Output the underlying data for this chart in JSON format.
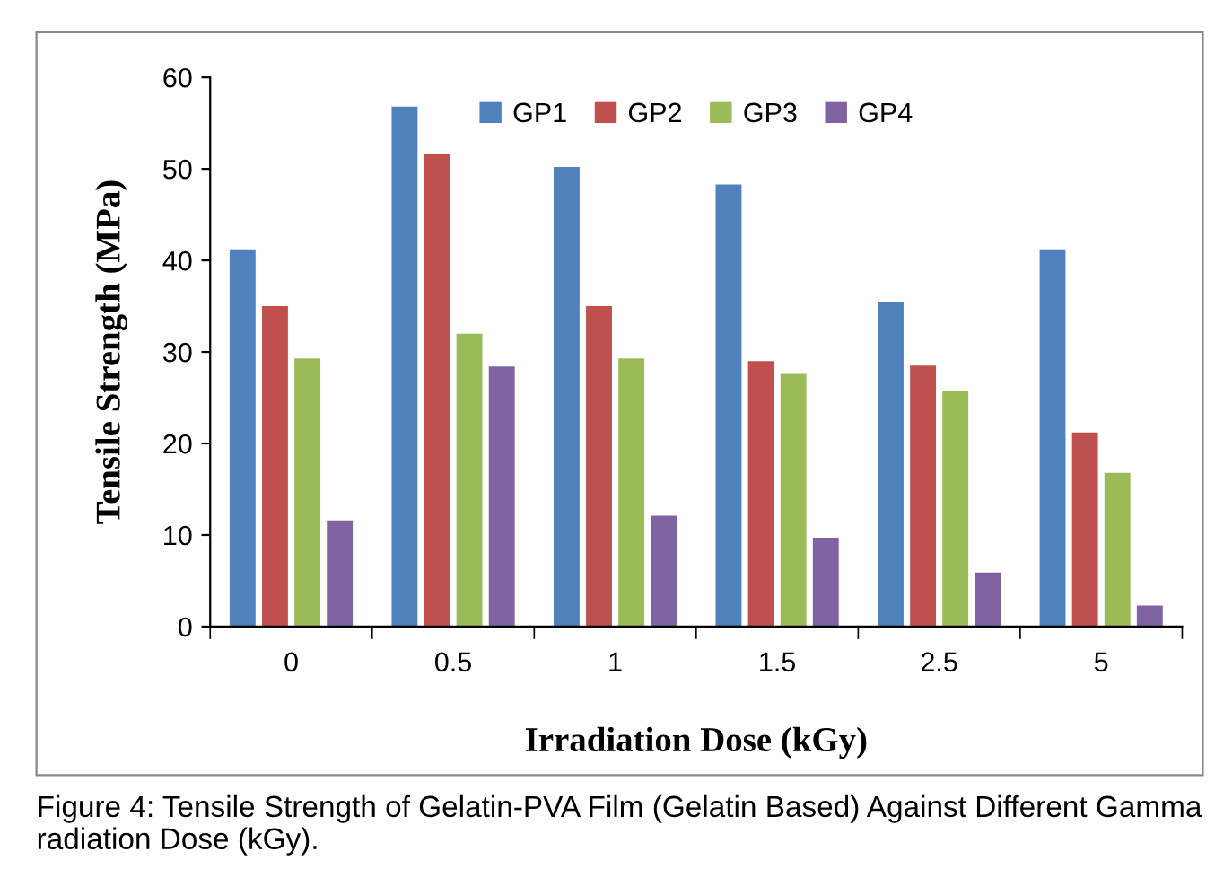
{
  "chart_data": {
    "type": "bar",
    "xlabel": "Irradiation Dose (kGy)",
    "ylabel": "Tensile Strength (MPa)",
    "categories": [
      "0",
      "0.5",
      "1",
      "1.5",
      "2.5",
      "5"
    ],
    "series": [
      {
        "name": "GP1",
        "color": "#4f81bd",
        "values": [
          41.2,
          56.8,
          50.2,
          48.3,
          35.5,
          41.2
        ]
      },
      {
        "name": "GP2",
        "color": "#c0504d",
        "values": [
          35.0,
          51.6,
          35.0,
          29.0,
          28.5,
          21.2
        ]
      },
      {
        "name": "GP3",
        "color": "#9bbb59",
        "values": [
          29.3,
          32.0,
          29.3,
          27.6,
          25.7,
          16.8
        ]
      },
      {
        "name": "GP4",
        "color": "#8064a2",
        "values": [
          11.6,
          28.4,
          12.1,
          9.7,
          5.9,
          2.3
        ]
      }
    ],
    "ylim": [
      0,
      60
    ],
    "yticks": [
      0,
      10,
      20,
      30,
      40,
      50,
      60
    ],
    "grid": false,
    "legend": "top",
    "annotations": [
      "Figure 4: Tensile Strength of Gelatin-PVA Film (Gelatin Based) Against Different Gamma radiation Dose (kGy)."
    ]
  }
}
